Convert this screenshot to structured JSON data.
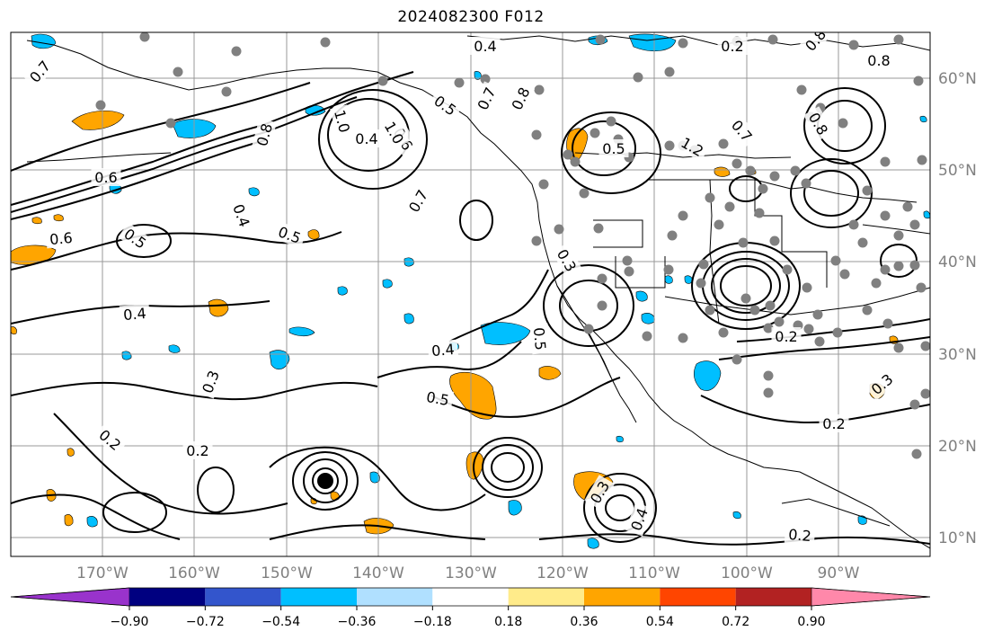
{
  "title": "2024082300 F012",
  "lat_labels": [
    "60°N",
    "50°N",
    "40°N",
    "30°N",
    "20°N",
    "10°N"
  ],
  "lon_labels": [
    "170°W",
    "160°W",
    "150°W",
    "140°W",
    "130°W",
    "120°W",
    "110°W",
    "100°W",
    "90°W"
  ],
  "contour_labels": [
    "0.4",
    "0.2",
    "0.8",
    "0.7",
    "0.5",
    "0.4",
    "0.6",
    "1.0",
    "0.8",
    "0.7",
    "0.8",
    "0.5",
    "0.7",
    "1.2",
    "0.6",
    "0.4",
    "0.5",
    "0.6",
    "0.5",
    "0.4",
    "0.3",
    "0.5",
    "0.4",
    "0.5",
    "0.3",
    "0.2",
    "0.2",
    "0.3",
    "0.2",
    "0.2",
    "0.2",
    "0.3",
    "0.4",
    "0.8",
    "1.0",
    "0.7",
    "0.8"
  ],
  "colorbar": {
    "ticks": [
      "−0.90",
      "−0.72",
      "−0.54",
      "−0.36",
      "−0.18",
      "0.18",
      "0.36",
      "0.54",
      "0.72",
      "0.90"
    ],
    "colors": [
      "#9933cc",
      "#000080",
      "#3355cc",
      "#00bfff",
      "#b0e0ff",
      "#ffffff",
      "#ffeb8a",
      "#ffa500",
      "#ff4500",
      "#b22222",
      "#ff88aa"
    ]
  },
  "fill_colors": {
    "orange": "#ffa500",
    "blue": "#00bfff"
  },
  "marker_color": "#808080",
  "hurricane_color": "#000000"
}
